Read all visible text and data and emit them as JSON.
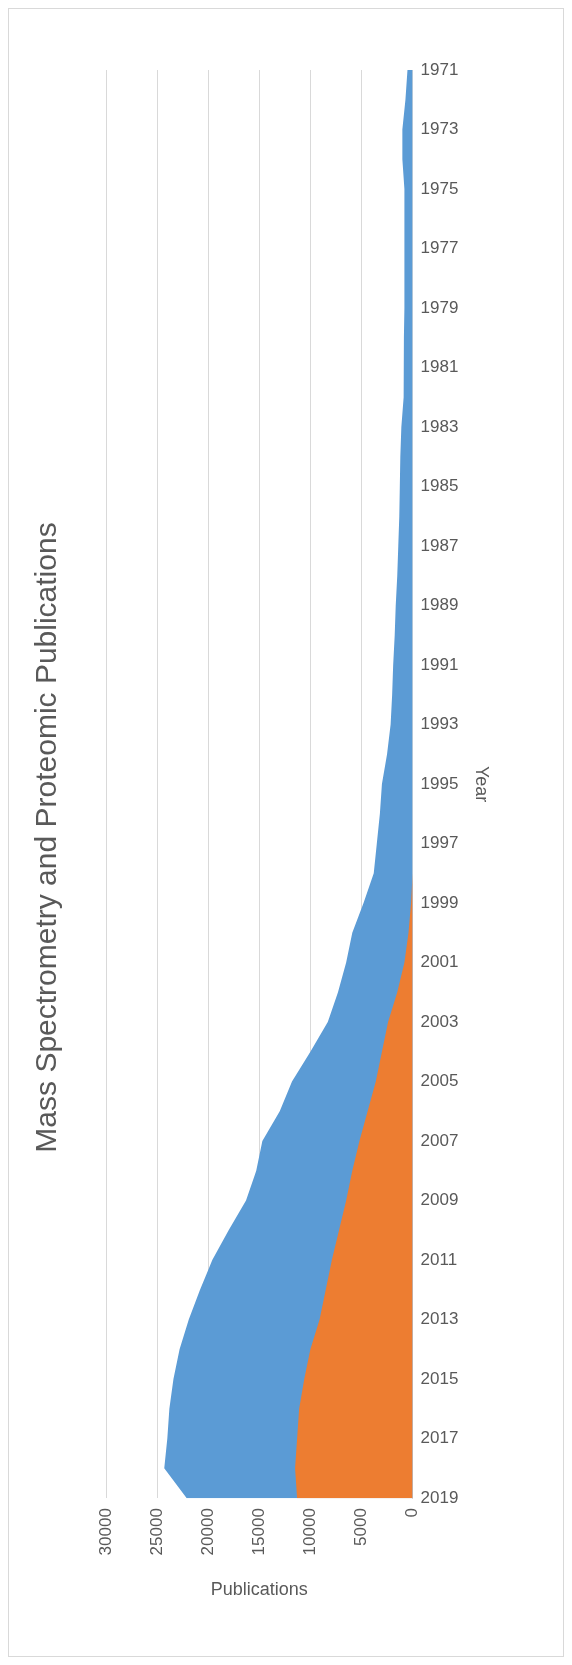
{
  "chart_data": {
    "type": "area",
    "orientation": "horizontal",
    "title": "Mass Spectrometry and Proteomic Publications",
    "xlabel": "Publications",
    "ylabel": "Year",
    "categories": [
      "1971",
      null,
      "1973",
      null,
      "1975",
      null,
      "1977",
      null,
      "1979",
      null,
      "1981",
      null,
      "1983",
      null,
      "1985",
      null,
      "1987",
      null,
      "1989",
      null,
      "1991",
      null,
      "1993",
      null,
      "1995",
      null,
      "1997",
      null,
      "1999",
      null,
      "2001",
      null,
      "2003",
      null,
      "2005",
      null,
      "2007",
      null,
      "2009",
      null,
      "2011",
      null,
      "2013",
      null,
      "2015",
      null,
      "2017",
      null,
      "2019"
    ],
    "series": [
      {
        "color": "#5b9bd5",
        "values": [
          500,
          700,
          1000,
          1000,
          800,
          800,
          800,
          800,
          800,
          850,
          850,
          900,
          1100,
          1200,
          1250,
          1300,
          1400,
          1500,
          1650,
          1750,
          1900,
          2000,
          2150,
          2500,
          3000,
          3200,
          3500,
          3800,
          4800,
          5900,
          6500,
          7300,
          8300,
          10000,
          11800,
          13000,
          14700,
          15300,
          16300,
          18000,
          19600,
          20800,
          21900,
          22800,
          23400,
          23800,
          24000,
          24300,
          22100
        ]
      },
      {
        "color": "#ed7d31",
        "values": [
          0,
          0,
          0,
          0,
          0,
          0,
          0,
          0,
          0,
          0,
          0,
          0,
          0,
          0,
          0,
          0,
          0,
          0,
          0,
          0,
          0,
          0,
          0,
          0,
          0,
          0,
          0,
          0,
          150,
          400,
          800,
          1500,
          2400,
          3000,
          3600,
          4400,
          5200,
          5900,
          6500,
          7200,
          7900,
          8500,
          9100,
          10000,
          10600,
          11100,
          11300,
          11500,
          11300
        ]
      }
    ],
    "xlim": [
      30000,
      0
    ],
    "xticks": [
      30000,
      25000,
      20000,
      15000,
      10000,
      5000,
      0
    ],
    "grid": "x",
    "legend": false
  }
}
